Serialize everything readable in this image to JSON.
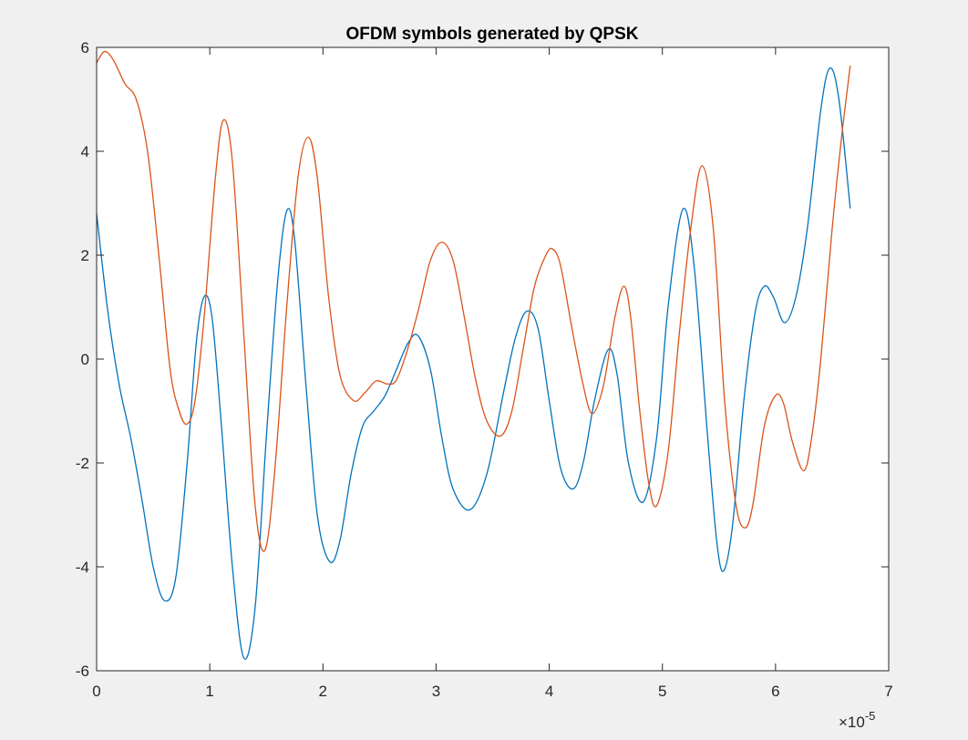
{
  "chart_data": {
    "type": "line",
    "title": "OFDM symbols generated by QPSK",
    "xlabel": "",
    "ylabel": "",
    "xlim": [
      0,
      7
    ],
    "ylim": [
      -6,
      6
    ],
    "x_exponent_label": "×10",
    "x_exponent": "-5",
    "x_ticks": [
      0,
      1,
      2,
      3,
      4,
      5,
      6,
      7
    ],
    "x_tick_labels": [
      "0",
      "1",
      "2",
      "3",
      "4",
      "5",
      "6",
      "7"
    ],
    "y_ticks": [
      -6,
      -4,
      -2,
      0,
      2,
      4,
      6
    ],
    "y_tick_labels": [
      "-6",
      "-4",
      "-2",
      "0",
      "2",
      "4",
      "6"
    ],
    "grid": false,
    "legend": "none",
    "series": [
      {
        "color": "#0072BD",
        "points": [
          [
            0.0,
            2.8
          ],
          [
            0.1,
            0.9
          ],
          [
            0.2,
            -0.5
          ],
          [
            0.3,
            -1.5
          ],
          [
            0.4,
            -2.7
          ],
          [
            0.5,
            -4.0
          ],
          [
            0.6,
            -4.65
          ],
          [
            0.7,
            -4.2
          ],
          [
            0.8,
            -2.0
          ],
          [
            0.88,
            0.3
          ],
          [
            0.95,
            1.2
          ],
          [
            1.02,
            0.8
          ],
          [
            1.1,
            -1.2
          ],
          [
            1.2,
            -4.0
          ],
          [
            1.3,
            -5.75
          ],
          [
            1.4,
            -4.8
          ],
          [
            1.5,
            -1.5
          ],
          [
            1.6,
            1.5
          ],
          [
            1.68,
            2.85
          ],
          [
            1.75,
            2.3
          ],
          [
            1.85,
            -0.5
          ],
          [
            1.95,
            -3.0
          ],
          [
            2.06,
            -3.9
          ],
          [
            2.15,
            -3.5
          ],
          [
            2.25,
            -2.2
          ],
          [
            2.35,
            -1.3
          ],
          [
            2.45,
            -1.0
          ],
          [
            2.55,
            -0.7
          ],
          [
            2.65,
            -0.2
          ],
          [
            2.75,
            0.3
          ],
          [
            2.84,
            0.45
          ],
          [
            2.95,
            -0.2
          ],
          [
            3.05,
            -1.5
          ],
          [
            3.15,
            -2.5
          ],
          [
            3.3,
            -2.9
          ],
          [
            3.45,
            -2.2
          ],
          [
            3.6,
            -0.6
          ],
          [
            3.7,
            0.4
          ],
          [
            3.8,
            0.92
          ],
          [
            3.9,
            0.6
          ],
          [
            4.0,
            -0.8
          ],
          [
            4.1,
            -2.1
          ],
          [
            4.21,
            -2.5
          ],
          [
            4.3,
            -2.0
          ],
          [
            4.4,
            -0.8
          ],
          [
            4.52,
            0.18
          ],
          [
            4.6,
            -0.3
          ],
          [
            4.7,
            -2.0
          ],
          [
            4.83,
            -2.75
          ],
          [
            4.95,
            -1.5
          ],
          [
            5.05,
            1.0
          ],
          [
            5.18,
            2.88
          ],
          [
            5.28,
            1.8
          ],
          [
            5.4,
            -1.5
          ],
          [
            5.48,
            -3.5
          ],
          [
            5.54,
            -4.08
          ],
          [
            5.62,
            -3.2
          ],
          [
            5.72,
            -0.8
          ],
          [
            5.82,
            0.9
          ],
          [
            5.9,
            1.4
          ],
          [
            5.98,
            1.2
          ],
          [
            6.08,
            0.7
          ],
          [
            6.18,
            1.2
          ],
          [
            6.28,
            2.5
          ],
          [
            6.4,
            4.8
          ],
          [
            6.48,
            5.6
          ],
          [
            6.56,
            5.0
          ],
          [
            6.66,
            2.9
          ]
        ]
      },
      {
        "color": "#D95319",
        "points": [
          [
            0.0,
            5.7
          ],
          [
            0.07,
            5.92
          ],
          [
            0.15,
            5.75
          ],
          [
            0.25,
            5.3
          ],
          [
            0.35,
            5.0
          ],
          [
            0.45,
            4.0
          ],
          [
            0.55,
            2.0
          ],
          [
            0.65,
            -0.2
          ],
          [
            0.73,
            -1.0
          ],
          [
            0.8,
            -1.25
          ],
          [
            0.87,
            -0.8
          ],
          [
            0.95,
            0.8
          ],
          [
            1.05,
            3.5
          ],
          [
            1.12,
            4.6
          ],
          [
            1.2,
            3.8
          ],
          [
            1.3,
            0.5
          ],
          [
            1.4,
            -2.8
          ],
          [
            1.49,
            -3.67
          ],
          [
            1.58,
            -2.0
          ],
          [
            1.68,
            1.0
          ],
          [
            1.78,
            3.5
          ],
          [
            1.87,
            4.27
          ],
          [
            1.95,
            3.5
          ],
          [
            2.05,
            1.2
          ],
          [
            2.15,
            -0.3
          ],
          [
            2.27,
            -0.8
          ],
          [
            2.37,
            -0.65
          ],
          [
            2.47,
            -0.42
          ],
          [
            2.57,
            -0.48
          ],
          [
            2.65,
            -0.4
          ],
          [
            2.75,
            0.2
          ],
          [
            2.85,
            1.0
          ],
          [
            2.95,
            1.9
          ],
          [
            3.05,
            2.25
          ],
          [
            3.15,
            1.9
          ],
          [
            3.25,
            0.8
          ],
          [
            3.35,
            -0.4
          ],
          [
            3.45,
            -1.2
          ],
          [
            3.57,
            -1.48
          ],
          [
            3.67,
            -1.0
          ],
          [
            3.77,
            0.2
          ],
          [
            3.87,
            1.4
          ],
          [
            3.97,
            2.0
          ],
          [
            4.03,
            2.12
          ],
          [
            4.1,
            1.8
          ],
          [
            4.2,
            0.6
          ],
          [
            4.3,
            -0.5
          ],
          [
            4.38,
            -1.05
          ],
          [
            4.48,
            -0.5
          ],
          [
            4.58,
            0.8
          ],
          [
            4.66,
            1.4
          ],
          [
            4.72,
            0.8
          ],
          [
            4.8,
            -1.0
          ],
          [
            4.88,
            -2.4
          ],
          [
            4.95,
            -2.82
          ],
          [
            5.05,
            -1.8
          ],
          [
            5.15,
            0.5
          ],
          [
            5.25,
            2.5
          ],
          [
            5.35,
            3.72
          ],
          [
            5.45,
            2.5
          ],
          [
            5.55,
            -0.8
          ],
          [
            5.65,
            -2.8
          ],
          [
            5.73,
            -3.25
          ],
          [
            5.8,
            -2.8
          ],
          [
            5.9,
            -1.3
          ],
          [
            6.0,
            -0.7
          ],
          [
            6.07,
            -0.85
          ],
          [
            6.15,
            -1.6
          ],
          [
            6.25,
            -2.15
          ],
          [
            6.32,
            -1.5
          ],
          [
            6.4,
            0.0
          ],
          [
            6.5,
            2.5
          ],
          [
            6.58,
            4.2
          ],
          [
            6.66,
            5.65
          ]
        ]
      }
    ]
  }
}
